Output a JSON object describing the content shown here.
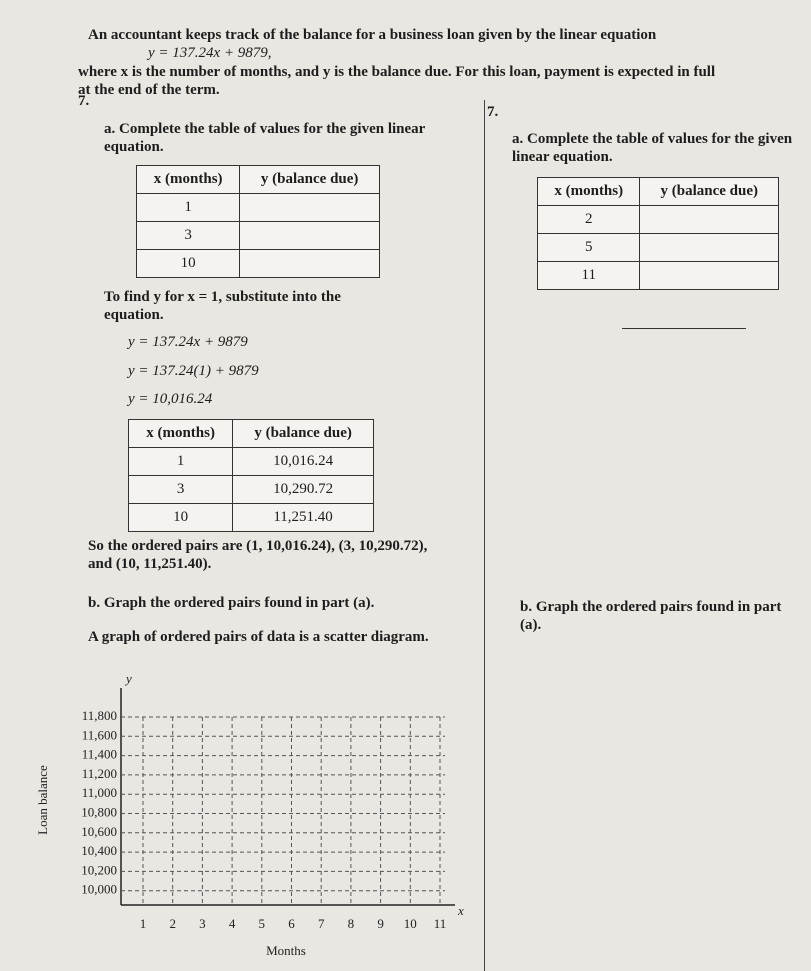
{
  "intro": "An accountant keeps track of the balance for a business loan given by the linear equation",
  "equation": "y = 137.24x + 9879,",
  "description": "where x is the number of months, and y is the balance due. For this loan, payment is expected in full at the end of the term.",
  "left": {
    "number": "7.",
    "part_a": "a. Complete the table of values for the given linear equation.",
    "table_blank": {
      "headers": [
        "x (months)",
        "y (balance due)"
      ],
      "rows": [
        [
          "1",
          ""
        ],
        [
          "3",
          ""
        ],
        [
          "10",
          ""
        ]
      ]
    },
    "explanation": "To find y for x = 1, substitute into the equation.",
    "steps": [
      "y = 137.24x + 9879",
      "y = 137.24(1) + 9879",
      "y = 10,016.24"
    ],
    "table_filled": {
      "headers": [
        "x (months)",
        "y (balance due)"
      ],
      "rows": [
        [
          "1",
          "10,016.24"
        ],
        [
          "3",
          "10,290.72"
        ],
        [
          "10",
          "11,251.40"
        ]
      ]
    },
    "ordered_pairs": "So the ordered pairs are (1, 10,016.24), (3, 10,290.72), and (10, 11,251.40).",
    "part_b": "b. Graph the ordered pairs found in part (a).",
    "scatter_note": "A graph of ordered pairs of data is a scatter diagram.",
    "graph": {
      "y_symbol": "y",
      "x_symbol": "x",
      "y_label": "Loan balance",
      "x_label": "Months",
      "yticks": [
        "11,800",
        "11,600",
        "11,400",
        "11,200",
        "11,000",
        "10,800",
        "10,600",
        "10,400",
        "10,200",
        "10,000"
      ],
      "xticks": [
        "1",
        "2",
        "3",
        "4",
        "5",
        "6",
        "7",
        "8",
        "9",
        "10",
        "11"
      ]
    }
  },
  "right": {
    "number": "7.",
    "part_a": "a. Complete the table of values for the given linear equation.",
    "table_blank": {
      "headers": [
        "x (months)",
        "y (balance due)"
      ],
      "rows": [
        [
          "2",
          ""
        ],
        [
          "5",
          ""
        ],
        [
          "11",
          ""
        ]
      ]
    },
    "part_b": "b. Graph the ordered pairs found in part (a)."
  }
}
